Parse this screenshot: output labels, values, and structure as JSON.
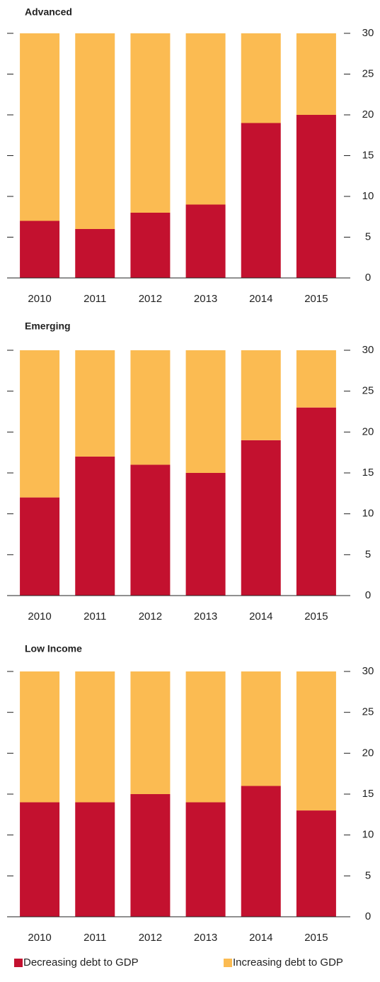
{
  "chart_data": [
    {
      "type": "bar",
      "stacked": true,
      "title": "Advanced",
      "categories": [
        "2010",
        "2011",
        "2012",
        "2013",
        "2014",
        "2015"
      ],
      "series": [
        {
          "values": [
            7,
            6,
            8,
            9,
            19,
            20
          ]
        },
        {
          "values": [
            23,
            24,
            22,
            21,
            11,
            10
          ]
        }
      ],
      "ylim": [
        0,
        30
      ],
      "yticks": [
        0,
        5,
        10,
        15,
        20,
        25,
        30
      ]
    },
    {
      "type": "bar",
      "stacked": true,
      "title": "Emerging",
      "categories": [
        "2010",
        "2011",
        "2012",
        "2013",
        "2014",
        "2015"
      ],
      "series": [
        {
          "values": [
            12,
            17,
            16,
            15,
            19,
            23
          ]
        },
        {
          "values": [
            18,
            13,
            14,
            15,
            11,
            7
          ]
        }
      ],
      "ylim": [
        0,
        30
      ],
      "yticks": [
        0,
        5,
        10,
        15,
        20,
        25,
        30
      ]
    },
    {
      "type": "bar",
      "stacked": true,
      "title": "Low Income",
      "categories": [
        "2010",
        "2011",
        "2012",
        "2013",
        "2014",
        "2015"
      ],
      "series": [
        {
          "values": [
            14,
            14,
            15,
            14,
            16,
            13
          ]
        },
        {
          "values": [
            16,
            16,
            15,
            16,
            14,
            17
          ]
        }
      ],
      "ylim": [
        0,
        30
      ],
      "yticks": [
        0,
        5,
        10,
        15,
        20,
        25,
        30
      ]
    }
  ],
  "legend": [
    {
      "name": "Decreasing debt to GDP",
      "color": "#c3112f"
    },
    {
      "name": "Increasing debt to GDP",
      "color": "#fbbb52"
    }
  ]
}
